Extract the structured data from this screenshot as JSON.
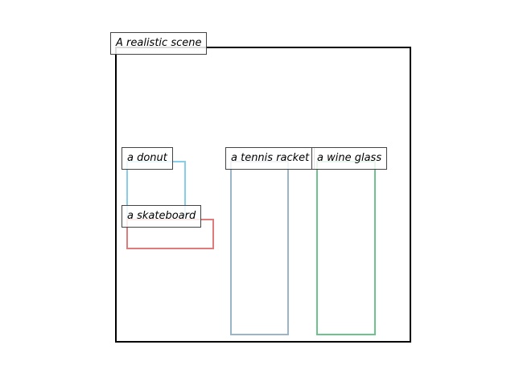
{
  "scene": {
    "title": "A realistic scene",
    "frame_color": "#000000"
  },
  "objects": [
    {
      "id": "donut",
      "label": "a donut",
      "color": "#87ceeb"
    },
    {
      "id": "skateboard",
      "label": "a skateboard",
      "color": "#e07b7b"
    },
    {
      "id": "tennis-racket",
      "label": "a tennis racket",
      "color": "#9ab5c8"
    },
    {
      "id": "wine-glass",
      "label": "a wine glass",
      "color": "#6cc48c"
    }
  ]
}
